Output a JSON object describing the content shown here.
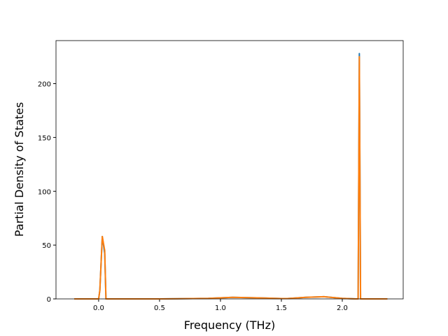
{
  "chart_data": {
    "type": "line",
    "xlabel": "Frequency (THz)",
    "ylabel": "Partial Density of States",
    "x": [
      -0.2,
      0.0,
      0.01,
      0.03,
      0.05,
      0.06,
      0.1,
      0.5,
      0.9,
      1.1,
      1.3,
      1.5,
      1.55,
      1.7,
      1.85,
      2.0,
      2.12,
      2.13,
      2.14,
      2.15,
      2.16,
      2.2,
      2.37
    ],
    "series": [
      {
        "color": "#1f77b4",
        "values": [
          0,
          0,
          8,
          58,
          42,
          0,
          0,
          0,
          0.5,
          1.5,
          1,
          0.3,
          0.3,
          1.5,
          2,
          0.5,
          0,
          0,
          228,
          0,
          0,
          0,
          0
        ]
      },
      {
        "color": "#ff7f0e",
        "values": [
          0,
          0,
          8,
          58,
          45,
          0,
          0,
          0,
          0.5,
          1.5,
          1,
          0.3,
          0.3,
          1.5,
          2,
          0.5,
          0,
          0,
          225,
          0,
          0,
          0,
          0
        ]
      }
    ],
    "xlim": [
      -0.35,
      2.5
    ],
    "ylim": [
      0,
      240
    ],
    "xticks": [
      {
        "value": 0,
        "label": "0.0"
      },
      0.5,
      {
        "value": 1,
        "label": "1.0"
      },
      1.5,
      {
        "value": 2,
        "label": "2.0"
      }
    ],
    "yticks": [
      0,
      50,
      100,
      150,
      200
    ]
  }
}
